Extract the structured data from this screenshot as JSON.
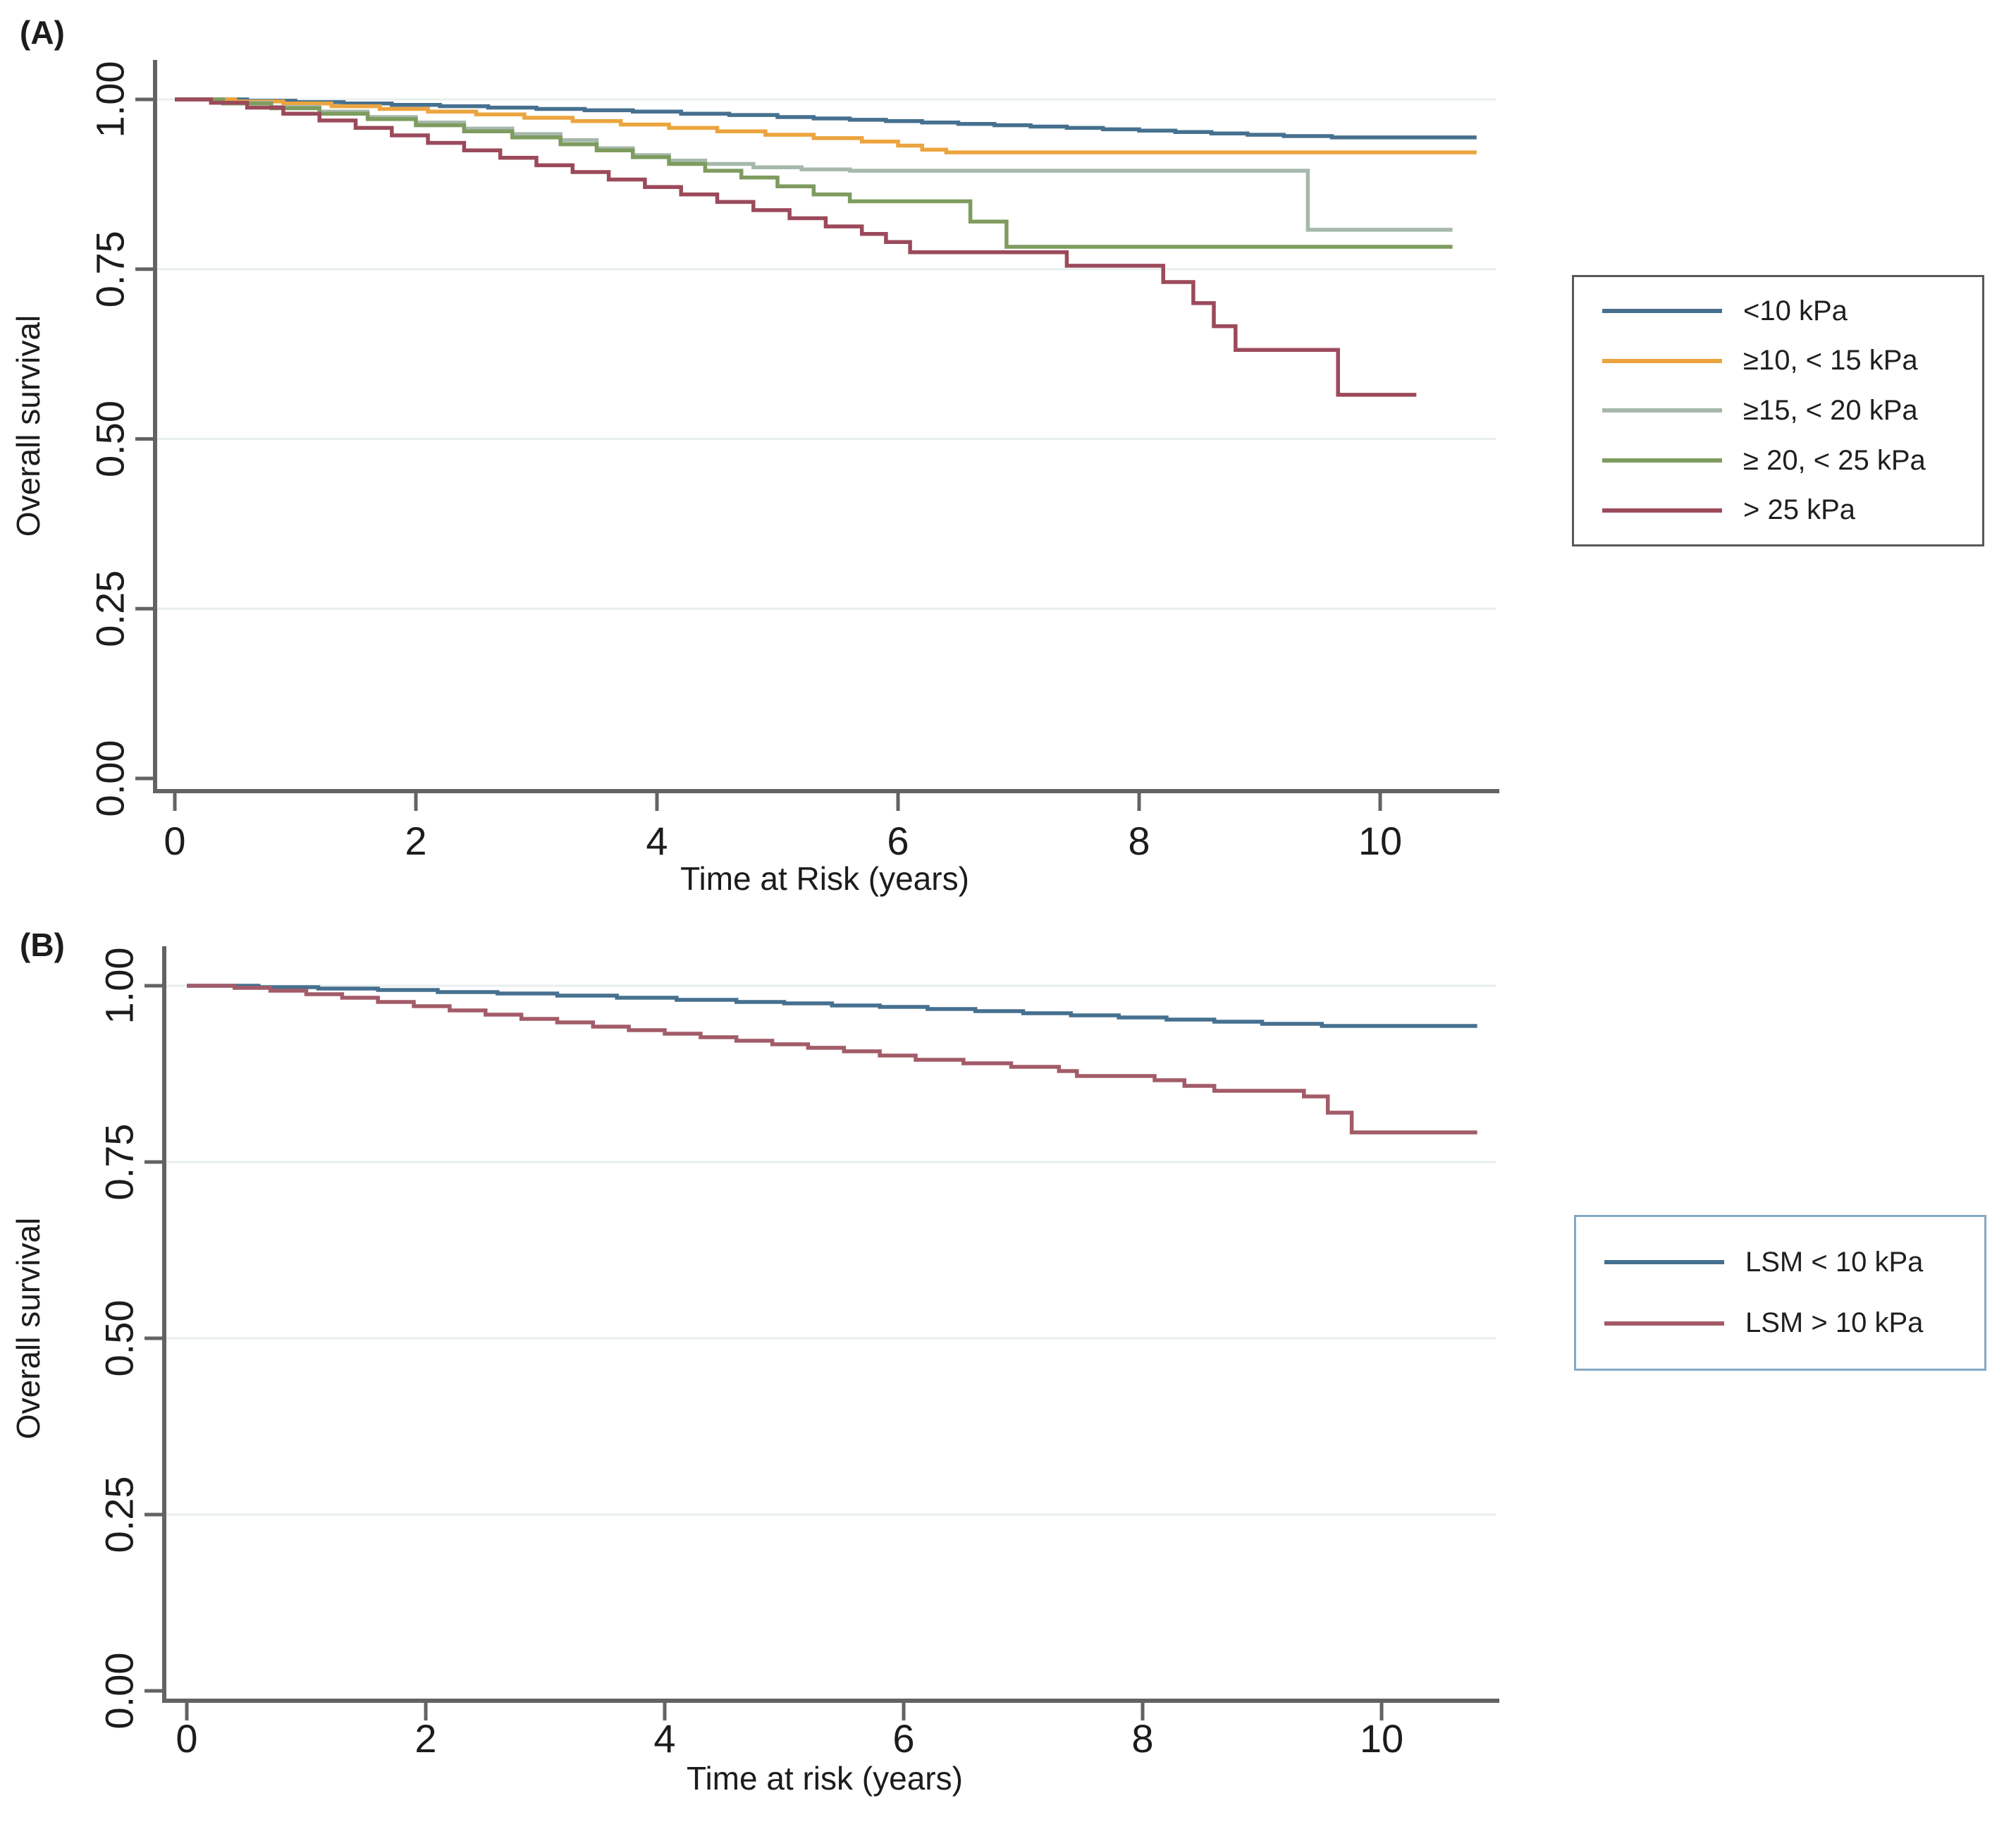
{
  "figure": {
    "panel_a": {
      "label": "(A)",
      "ylabel": "Overall survival",
      "xlabel": "Time at Risk (years)",
      "ytick_labels": [
        "1.00",
        "0.75",
        "0.50",
        "0.25",
        "0.00"
      ],
      "xtick_labels": [
        "0",
        "2",
        "4",
        "6",
        "8",
        "10"
      ]
    },
    "panel_b": {
      "label": "(B)",
      "ylabel": "Overall survival",
      "xlabel": "Time at risk (years)",
      "ytick_labels": [
        "1.00",
        "0.75",
        "0.50",
        "0.25",
        "0.00"
      ],
      "xtick_labels": [
        "0",
        "2",
        "4",
        "6",
        "8",
        "10"
      ]
    },
    "colors": {
      "axis": "#636363",
      "grid": "#e8efee",
      "text": "#1c1c1c",
      "legend_a_border": "#58585a",
      "legend_b_border": "#85a9c5"
    }
  },
  "chart_data": [
    {
      "type": "line",
      "style": "kaplan-meier-step",
      "panel": "A",
      "title": "(A)",
      "xlabel": "Time at Risk (years)",
      "ylabel": "Overall survival",
      "xlim": [
        0,
        11
      ],
      "ylim": [
        0,
        1
      ],
      "xticks": [
        0,
        2,
        4,
        6,
        8,
        10
      ],
      "yticks": [
        1.0,
        0.75,
        0.5,
        0.25,
        0.0
      ],
      "grid": "horizontal",
      "legend_position": "outside-right",
      "series": [
        {
          "name": "<10 kPa",
          "color": "#46708f",
          "points": [
            [
              0,
              1.0
            ],
            [
              0.6,
              0.998
            ],
            [
              1.0,
              0.996
            ],
            [
              1.4,
              0.994
            ],
            [
              1.8,
              0.992
            ],
            [
              2.2,
              0.99
            ],
            [
              2.6,
              0.988
            ],
            [
              3.0,
              0.986
            ],
            [
              3.4,
              0.984
            ],
            [
              3.8,
              0.982
            ],
            [
              4.2,
              0.979
            ],
            [
              4.6,
              0.977
            ],
            [
              5.0,
              0.974
            ],
            [
              5.3,
              0.972
            ],
            [
              5.6,
              0.97
            ],
            [
              5.9,
              0.968
            ],
            [
              6.2,
              0.966
            ],
            [
              6.5,
              0.964
            ],
            [
              6.8,
              0.962
            ],
            [
              7.1,
              0.96
            ],
            [
              7.4,
              0.958
            ],
            [
              7.7,
              0.956
            ],
            [
              8.0,
              0.954
            ],
            [
              8.3,
              0.952
            ],
            [
              8.6,
              0.95
            ],
            [
              8.9,
              0.948
            ],
            [
              9.2,
              0.946
            ],
            [
              9.6,
              0.944
            ],
            [
              10.8,
              0.944
            ]
          ]
        },
        {
          "name": "≥10, < 15 kPa",
          "color": "#eca43e",
          "points": [
            [
              0,
              1.0
            ],
            [
              0.5,
              0.997
            ],
            [
              0.9,
              0.994
            ],
            [
              1.3,
              0.99
            ],
            [
              1.7,
              0.986
            ],
            [
              2.1,
              0.982
            ],
            [
              2.5,
              0.978
            ],
            [
              2.9,
              0.973
            ],
            [
              3.3,
              0.968
            ],
            [
              3.7,
              0.963
            ],
            [
              4.1,
              0.958
            ],
            [
              4.5,
              0.953
            ],
            [
              4.9,
              0.948
            ],
            [
              5.3,
              0.943
            ],
            [
              5.7,
              0.938
            ],
            [
              6.0,
              0.932
            ],
            [
              6.2,
              0.926
            ],
            [
              6.4,
              0.922
            ],
            [
              10.8,
              0.922
            ]
          ]
        },
        {
          "name": "≥15, < 20 kPa",
          "color": "#a6b8ab",
          "points": [
            [
              0,
              1.0
            ],
            [
              0.4,
              0.995
            ],
            [
              0.8,
              0.989
            ],
            [
              1.2,
              0.982
            ],
            [
              1.6,
              0.974
            ],
            [
              2.0,
              0.966
            ],
            [
              2.4,
              0.957
            ],
            [
              2.8,
              0.949
            ],
            [
              3.2,
              0.94
            ],
            [
              3.5,
              0.928
            ],
            [
              3.8,
              0.918
            ],
            [
              4.1,
              0.91
            ],
            [
              4.4,
              0.905
            ],
            [
              4.8,
              0.9
            ],
            [
              5.2,
              0.897
            ],
            [
              5.6,
              0.895
            ],
            [
              9.4,
              0.808
            ],
            [
              10.6,
              0.808
            ]
          ]
        },
        {
          "name": "≥ 20, < 25 kPa",
          "color": "#7e9c5f",
          "points": [
            [
              0,
              1.0
            ],
            [
              0.4,
              0.994
            ],
            [
              0.8,
              0.987
            ],
            [
              1.2,
              0.979
            ],
            [
              1.6,
              0.971
            ],
            [
              2.0,
              0.962
            ],
            [
              2.4,
              0.953
            ],
            [
              2.8,
              0.944
            ],
            [
              3.2,
              0.934
            ],
            [
              3.5,
              0.925
            ],
            [
              3.8,
              0.915
            ],
            [
              4.1,
              0.905
            ],
            [
              4.4,
              0.895
            ],
            [
              4.7,
              0.885
            ],
            [
              5.0,
              0.872
            ],
            [
              5.3,
              0.86
            ],
            [
              5.6,
              0.85
            ],
            [
              6.6,
              0.82
            ],
            [
              6.9,
              0.783
            ],
            [
              10.6,
              0.783
            ]
          ]
        },
        {
          "name": "> 25 kPa",
          "color": "#9b4a5b",
          "points": [
            [
              0,
              1.0
            ],
            [
              0.3,
              0.995
            ],
            [
              0.6,
              0.988
            ],
            [
              0.9,
              0.979
            ],
            [
              1.2,
              0.969
            ],
            [
              1.5,
              0.958
            ],
            [
              1.8,
              0.947
            ],
            [
              2.1,
              0.936
            ],
            [
              2.4,
              0.925
            ],
            [
              2.7,
              0.914
            ],
            [
              3.0,
              0.903
            ],
            [
              3.3,
              0.893
            ],
            [
              3.6,
              0.882
            ],
            [
              3.9,
              0.871
            ],
            [
              4.2,
              0.86
            ],
            [
              4.5,
              0.849
            ],
            [
              4.8,
              0.837
            ],
            [
              5.1,
              0.825
            ],
            [
              5.4,
              0.813
            ],
            [
              5.7,
              0.802
            ],
            [
              5.9,
              0.79
            ],
            [
              6.1,
              0.775
            ],
            [
              7.4,
              0.755
            ],
            [
              8.2,
              0.731
            ],
            [
              8.45,
              0.7
            ],
            [
              8.62,
              0.666
            ],
            [
              8.8,
              0.631
            ],
            [
              9.65,
              0.565
            ],
            [
              10.3,
              0.565
            ]
          ]
        }
      ]
    },
    {
      "type": "line",
      "style": "kaplan-meier-step",
      "panel": "B",
      "title": "(B)",
      "xlabel": "Time at risk (years)",
      "ylabel": "Overall survival",
      "xlim": [
        0,
        11
      ],
      "ylim": [
        0,
        1
      ],
      "xticks": [
        0,
        2,
        4,
        6,
        8,
        10
      ],
      "yticks": [
        1.0,
        0.75,
        0.5,
        0.25,
        0.0
      ],
      "grid": "horizontal",
      "legend_position": "outside-right",
      "series": [
        {
          "name": "LSM < 10 kPa",
          "color": "#46708f",
          "points": [
            [
              0,
              1.0
            ],
            [
              0.6,
              0.998
            ],
            [
              1.1,
              0.996
            ],
            [
              1.6,
              0.994
            ],
            [
              2.1,
              0.991
            ],
            [
              2.6,
              0.989
            ],
            [
              3.1,
              0.986
            ],
            [
              3.6,
              0.983
            ],
            [
              4.1,
              0.98
            ],
            [
              4.6,
              0.977
            ],
            [
              5.0,
              0.975
            ],
            [
              5.4,
              0.972
            ],
            [
              5.8,
              0.97
            ],
            [
              6.2,
              0.967
            ],
            [
              6.6,
              0.964
            ],
            [
              7.0,
              0.961
            ],
            [
              7.4,
              0.958
            ],
            [
              7.8,
              0.955
            ],
            [
              8.2,
              0.952
            ],
            [
              8.6,
              0.949
            ],
            [
              9.0,
              0.946
            ],
            [
              9.5,
              0.943
            ],
            [
              10.8,
              0.943
            ]
          ]
        },
        {
          "name": "LSM > 10 kPa",
          "color": "#a35b68",
          "points": [
            [
              0,
              1.0
            ],
            [
              0.4,
              0.997
            ],
            [
              0.7,
              0.993
            ],
            [
              1.0,
              0.988
            ],
            [
              1.3,
              0.983
            ],
            [
              1.6,
              0.977
            ],
            [
              1.9,
              0.971
            ],
            [
              2.2,
              0.965
            ],
            [
              2.5,
              0.959
            ],
            [
              2.8,
              0.953
            ],
            [
              3.1,
              0.948
            ],
            [
              3.4,
              0.942
            ],
            [
              3.7,
              0.937
            ],
            [
              4.0,
              0.932
            ],
            [
              4.3,
              0.927
            ],
            [
              4.6,
              0.922
            ],
            [
              4.9,
              0.917
            ],
            [
              5.2,
              0.912
            ],
            [
              5.5,
              0.907
            ],
            [
              5.8,
              0.901
            ],
            [
              6.1,
              0.895
            ],
            [
              6.5,
              0.89
            ],
            [
              6.9,
              0.885
            ],
            [
              7.3,
              0.879
            ],
            [
              7.45,
              0.872
            ],
            [
              8.1,
              0.866
            ],
            [
              8.35,
              0.858
            ],
            [
              8.6,
              0.851
            ],
            [
              9.35,
              0.843
            ],
            [
              9.55,
              0.82
            ],
            [
              9.75,
              0.792
            ],
            [
              10.8,
              0.792
            ]
          ]
        }
      ]
    }
  ]
}
